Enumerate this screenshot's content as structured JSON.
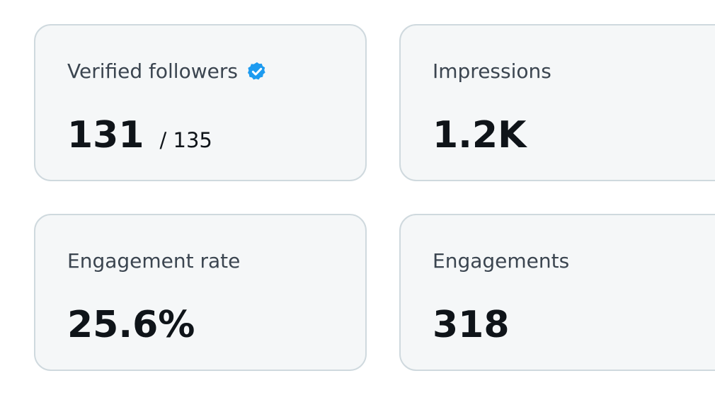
{
  "cards": [
    {
      "label": "Verified followers",
      "value": "131",
      "total": "/ 135"
    },
    {
      "label": "Impressions",
      "value": "1.2K"
    },
    {
      "label": "Engagement rate",
      "value": "25.6%"
    },
    {
      "label": "Engagements",
      "value": "318"
    }
  ]
}
